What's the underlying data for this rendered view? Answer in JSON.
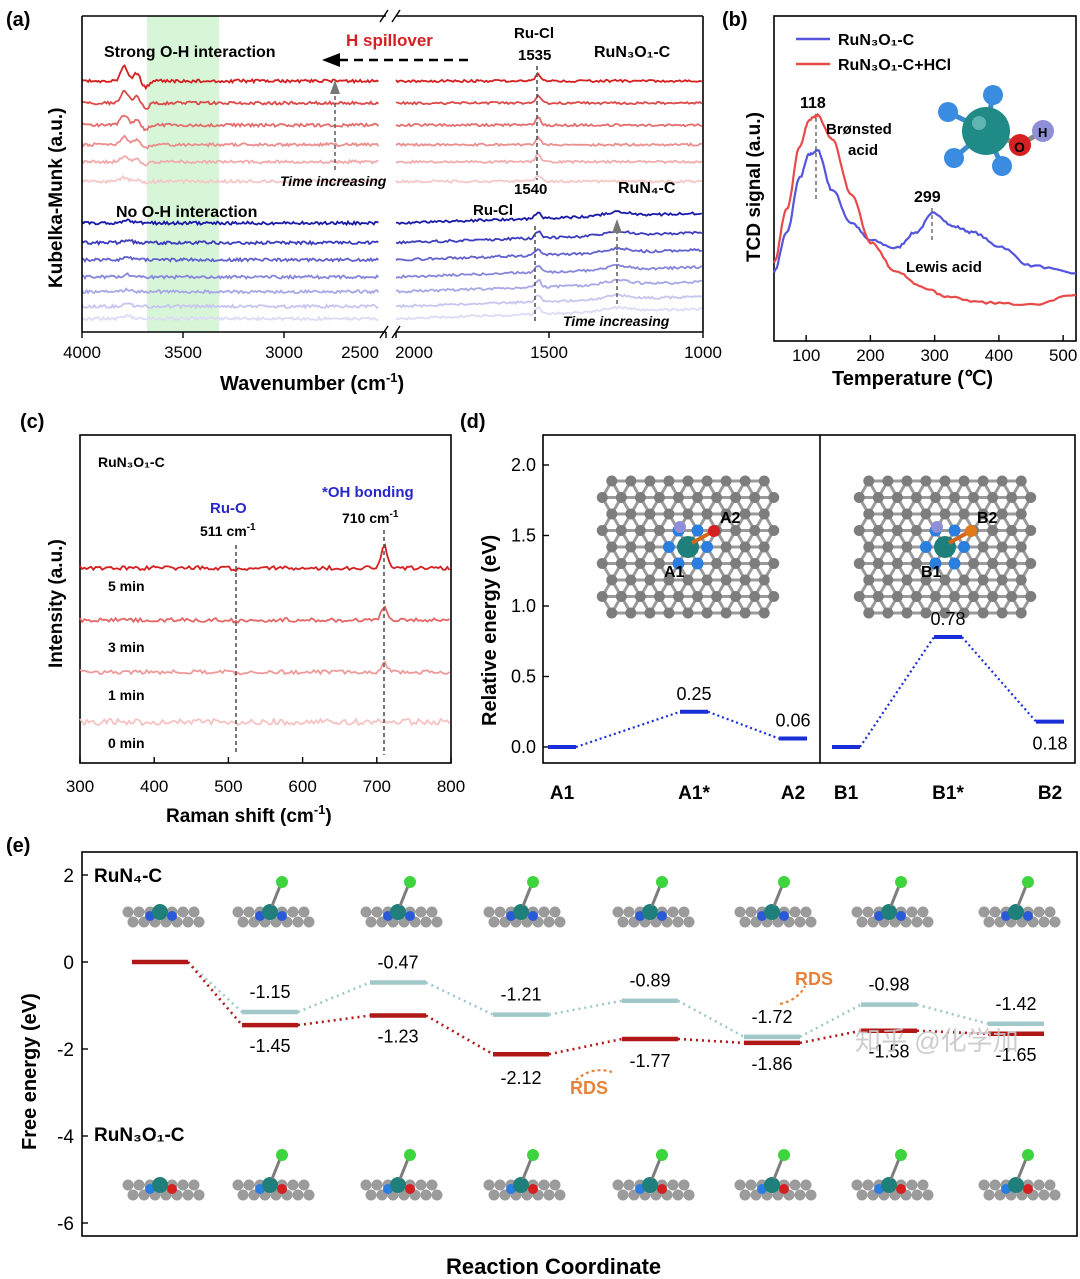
{
  "figure": {
    "watermark": "知乎 @化学加"
  },
  "panels": {
    "a": {
      "label": "(a)"
    },
    "b": {
      "label": "(b)"
    },
    "c": {
      "label": "(c)"
    },
    "d": {
      "label": "(d)"
    },
    "e": {
      "label": "(e)"
    }
  },
  "chart_data": [
    {
      "id": "a",
      "type": "line",
      "xlabel": "Wavenumber (cm⁻¹)",
      "ylabel": "Kubelka-Munk (a.u.)",
      "xlim": [
        4000,
        1000
      ],
      "axis_break": [
        2050,
        2000
      ],
      "xticks": [
        "4000",
        "3500",
        "3000",
        "2500",
        "2000",
        "1500",
        "1000"
      ],
      "highlight_region": [
        3780,
        3550
      ],
      "annotations": {
        "strong_oh": "Strong O-H interaction",
        "h_spillover": "H spillover",
        "ru_cl_top": "Ru-Cl",
        "ru_cl_top_pos": "1535",
        "run3o1c": "RuN₃O₁-C",
        "time_top": "Time increasing",
        "no_oh": "No O-H interaction",
        "ru_cl_bottom": "Ru-Cl",
        "ru_cl_bottom_pos": "1540",
        "run4c": "RuN₄-C",
        "time_bottom": "Time increasing"
      },
      "series": [
        {
          "group": "RuN3O1-C",
          "offset": 5.0,
          "color": "#d42020"
        },
        {
          "group": "RuN3O1-C",
          "offset": 4.55,
          "color": "#dd4a4a"
        },
        {
          "group": "RuN3O1-C",
          "offset": 4.1,
          "color": "#e46e6e"
        },
        {
          "group": "RuN3O1-C",
          "offset": 3.7,
          "color": "#ea8e8e"
        },
        {
          "group": "RuN3O1-C",
          "offset": 3.35,
          "color": "#f0acac"
        },
        {
          "group": "RuN3O1-C",
          "offset": 2.95,
          "color": "#f5c8c8"
        },
        {
          "group": "RuN4-C",
          "offset": 2.1,
          "color": "#1a1aa8"
        },
        {
          "group": "RuN4-C",
          "offset": 1.7,
          "color": "#3c3cbc"
        },
        {
          "group": "RuN4-C",
          "offset": 1.35,
          "color": "#6262cc"
        },
        {
          "group": "RuN4-C",
          "offset": 1.0,
          "color": "#8686da"
        },
        {
          "group": "RuN4-C",
          "offset": 0.7,
          "color": "#a8a8e6"
        },
        {
          "group": "RuN4-C",
          "offset": 0.4,
          "color": "#c6c6f0"
        },
        {
          "group": "RuN4-C",
          "offset": 0.15,
          "color": "#dcdcf6"
        }
      ]
    },
    {
      "id": "b",
      "type": "line",
      "xlabel": "Temperature (℃)",
      "ylabel": "TCD signal (a.u.)",
      "xlim": [
        50,
        520
      ],
      "xticks": [
        "100",
        "200",
        "300",
        "400",
        "500"
      ],
      "series": [
        {
          "name": "RuN₃O₁-C",
          "color": "#5555dd",
          "x": [
            50,
            70,
            90,
            105,
            118,
            140,
            170,
            200,
            240,
            270,
            299,
            330,
            360,
            400,
            450,
            520
          ],
          "y": [
            0.3,
            0.5,
            0.78,
            0.9,
            0.92,
            0.72,
            0.55,
            0.46,
            0.42,
            0.5,
            0.6,
            0.53,
            0.5,
            0.43,
            0.33,
            0.29
          ]
        },
        {
          "name": "RuN₃O₁-C+HCl",
          "color": "#e84a4a",
          "x": [
            50,
            70,
            90,
            105,
            118,
            140,
            170,
            200,
            240,
            280,
            320,
            380,
            450,
            520
          ],
          "y": [
            0.35,
            0.62,
            0.94,
            1.08,
            1.1,
            0.98,
            0.7,
            0.45,
            0.3,
            0.22,
            0.17,
            0.14,
            0.13,
            0.18
          ]
        }
      ],
      "annotations": {
        "peak1": "118",
        "peak1_label_1": "Brønsted",
        "peak1_label_2": "acid",
        "peak2": "299",
        "peak2_label": "Lewis acid",
        "molecule_o": "O",
        "molecule_h": "H"
      }
    },
    {
      "id": "c",
      "type": "line",
      "xlabel": "Raman shift (cm⁻¹)",
      "ylabel": "Intensity (a.u.)",
      "xlim": [
        300,
        800
      ],
      "xticks": [
        "300",
        "400",
        "500",
        "600",
        "700",
        "800"
      ],
      "annotations": {
        "sample": "RuN₃O₁-C",
        "ru_o": "Ru-O",
        "ru_o_pos": "511 cm⁻¹",
        "oh_bond": "*OH bonding",
        "oh_pos": "710 cm⁻¹"
      },
      "series": [
        {
          "name": "5 min",
          "offset": 3.0,
          "peak": 0.55,
          "color": "#d42020"
        },
        {
          "name": "3 min",
          "offset": 2.0,
          "peak": 0.35,
          "color": "#e46666"
        },
        {
          "name": "1 min",
          "offset": 1.0,
          "peak": 0.22,
          "color": "#ee9a9a"
        },
        {
          "name": "0 min",
          "offset": 0.0,
          "peak": 0.05,
          "color": "#f6c2c2"
        }
      ]
    },
    {
      "id": "d",
      "type": "line",
      "ylabel": "Relative energy (eV)",
      "ylim": [
        -0.1,
        2.25
      ],
      "yticks": [
        "0.0",
        "0.5",
        "1.0",
        "1.5",
        "2.0"
      ],
      "categories": [
        "A1",
        "A1*",
        "A2",
        "B1",
        "B1*",
        "B2"
      ],
      "series": [
        {
          "name": "A",
          "x": [
            "A1",
            "A1*",
            "A2"
          ],
          "values": [
            0.0,
            0.25,
            0.06
          ],
          "labels": [
            "",
            "0.25",
            "0.06"
          ],
          "color": "#1a2fd8"
        },
        {
          "name": "B",
          "x": [
            "B1",
            "B1*",
            "B2"
          ],
          "values": [
            0.0,
            0.78,
            0.18
          ],
          "labels": [
            "",
            "0.78",
            "0.18"
          ],
          "color": "#1a2fd8"
        }
      ],
      "inset_labels": {
        "a1": "A1",
        "a2": "A2",
        "b1": "B1",
        "b2": "B2"
      }
    },
    {
      "id": "e",
      "type": "line",
      "xlabel": "Reaction Coordinate",
      "ylabel": "Free energy (eV)",
      "ylim": [
        -6.2,
        2.6
      ],
      "yticks": [
        "2",
        "0",
        "-2",
        "-4",
        "-6"
      ],
      "series": [
        {
          "name": "RuN₄-C",
          "color": "#a0c8c8",
          "values": [
            0,
            -1.15,
            -0.47,
            -1.21,
            -0.89,
            -1.72,
            -0.98,
            -1.42
          ],
          "labels": [
            "",
            "-1.15",
            "-0.47",
            "-1.21",
            "-0.89",
            "-1.72",
            "-0.98",
            "-1.42"
          ]
        },
        {
          "name": "RuN₃O₁-C",
          "color": "#b01818",
          "values": [
            0,
            -1.45,
            -1.23,
            -2.12,
            -1.77,
            -1.86,
            -1.58,
            -1.65
          ],
          "labels": [
            "",
            "-1.45",
            "-1.23",
            "-2.12",
            "-1.77",
            "-1.86",
            "-1.58",
            "-1.65"
          ]
        }
      ],
      "annotations": {
        "top_label": "RuN₄-C",
        "bottom_label": "RuN₃O₁-C",
        "rds1": "RDS",
        "rds2": "RDS"
      }
    }
  ]
}
